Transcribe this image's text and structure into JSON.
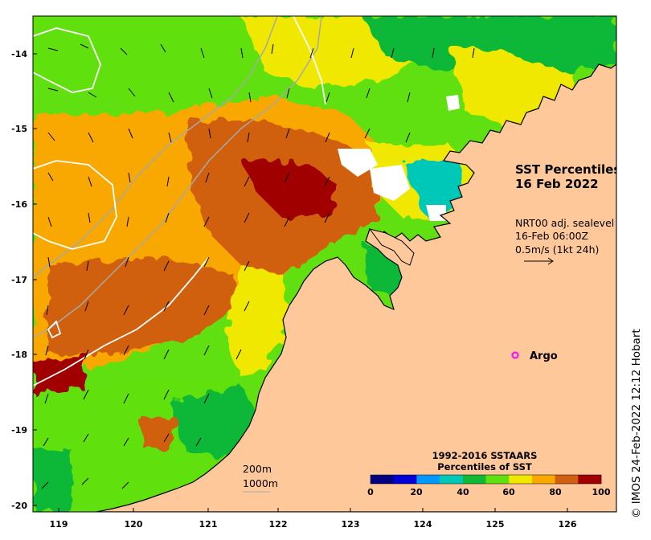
{
  "map": {
    "title_line1": "SST Percentiles",
    "title_line2": "16 Feb 2022",
    "current_info": {
      "line1": "NRT00 adj. sealevel",
      "line2": "16-Feb 06:00Z",
      "line3": "0.5m/s (1kt 24h)"
    },
    "argo_label": "Argo",
    "bathymetry_labels": [
      "200m",
      "1000m"
    ],
    "lon_ticks": [
      "119",
      "120",
      "121",
      "122",
      "123",
      "124",
      "125",
      "126"
    ],
    "lat_ticks": [
      "-14",
      "-15",
      "-16",
      "-17",
      "-18",
      "-19",
      "-20"
    ],
    "lon_range": [
      118.6,
      126.8
    ],
    "lat_range": [
      -20.07,
      -13.55
    ],
    "credit": "© IMOS 24-Feb-2022 12:12 Hobart",
    "argo_position": {
      "lon": 125.2,
      "lat": -18.0
    }
  },
  "legend": {
    "title_line1": "1992-2016 SSTAARS",
    "title_line2": "Percentiles of SST",
    "tick_labels": [
      "0",
      "20",
      "40",
      "60",
      "80",
      "100"
    ],
    "colors": [
      "#000080",
      "#0000d8",
      "#0098ff",
      "#00c8b8",
      "#10b838",
      "#60e010",
      "#f0e800",
      "#f8a800",
      "#d06010",
      "#a00000"
    ]
  },
  "colors": {
    "land": "#fec89a",
    "argo_marker": "#ff00ff",
    "contour": "#ffffff",
    "bathymetry": "#a8a8a8"
  }
}
